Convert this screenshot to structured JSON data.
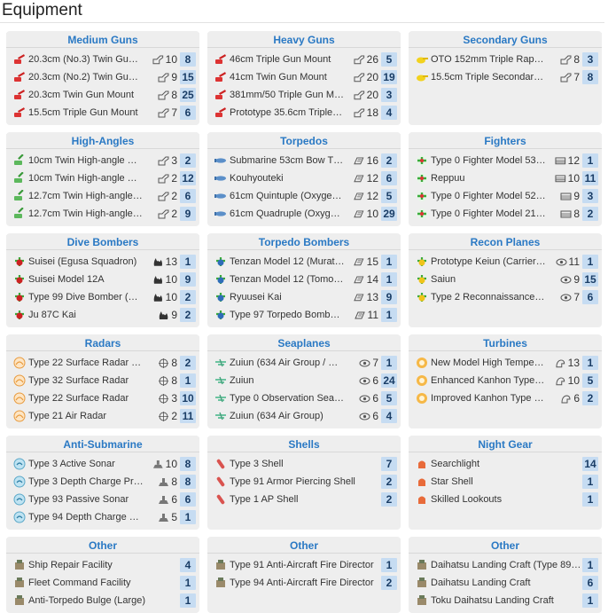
{
  "page_title": "Equipment",
  "panels": [
    {
      "title": "Medium Guns",
      "icon": "red-gun",
      "items": [
        {
          "name": "20.3cm (No.3) Twin Gu…",
          "stat_icon": "firepower",
          "stat": "10",
          "count": "8"
        },
        {
          "name": "20.3cm (No.2) Twin Gu…",
          "stat_icon": "firepower",
          "stat": "9",
          "count": "15"
        },
        {
          "name": "20.3cm Twin Gun Mount",
          "stat_icon": "firepower",
          "stat": "8",
          "count": "25"
        },
        {
          "name": "15.5cm Triple Gun Mount",
          "stat_icon": "firepower",
          "stat": "7",
          "count": "6"
        }
      ]
    },
    {
      "title": "Heavy Guns",
      "icon": "red-gun",
      "items": [
        {
          "name": "46cm Triple Gun Mount",
          "stat_icon": "firepower",
          "stat": "26",
          "count": "5"
        },
        {
          "name": "41cm Twin Gun Mount",
          "stat_icon": "firepower",
          "stat": "20",
          "count": "19"
        },
        {
          "name": "381mm/50 Triple Gun M…",
          "stat_icon": "firepower",
          "stat": "20",
          "count": "3"
        },
        {
          "name": "Prototype 35.6cm Triple…",
          "stat_icon": "firepower",
          "stat": "18",
          "count": "4"
        }
      ]
    },
    {
      "title": "Secondary Guns",
      "icon": "yellow-gun",
      "items": [
        {
          "name": "OTO 152mm Triple Rap…",
          "stat_icon": "firepower",
          "stat": "8",
          "count": "3"
        },
        {
          "name": "15.5cm Triple Secondar…",
          "stat_icon": "firepower",
          "stat": "7",
          "count": "8"
        }
      ]
    },
    {
      "title": "High-Angles",
      "icon": "green-gun",
      "items": [
        {
          "name": "10cm Twin High-angle …",
          "stat_icon": "firepower",
          "stat": "3",
          "count": "2"
        },
        {
          "name": "10cm Twin High-angle …",
          "stat_icon": "firepower",
          "stat": "2",
          "count": "12"
        },
        {
          "name": "12.7cm Twin High-angle…",
          "stat_icon": "firepower",
          "stat": "2",
          "count": "6"
        },
        {
          "name": "12.7cm Twin High-angle…",
          "stat_icon": "firepower",
          "stat": "2",
          "count": "9"
        }
      ]
    },
    {
      "title": "Torpedos",
      "icon": "blue-torpedo",
      "items": [
        {
          "name": "Submarine 53cm Bow T…",
          "stat_icon": "torpedo",
          "stat": "16",
          "count": "2"
        },
        {
          "name": "Kouhyouteki",
          "stat_icon": "torpedo",
          "stat": "12",
          "count": "6"
        },
        {
          "name": "61cm Quintuple (Oxyge…",
          "stat_icon": "torpedo",
          "stat": "12",
          "count": "5"
        },
        {
          "name": "61cm Quadruple (Oxyg…",
          "stat_icon": "torpedo",
          "stat": "10",
          "count": "29"
        }
      ]
    },
    {
      "title": "Fighters",
      "icon": "green-plane",
      "items": [
        {
          "name": "Type 0 Fighter Model 53…",
          "stat_icon": "antiair",
          "stat": "12",
          "count": "1"
        },
        {
          "name": "Reppuu",
          "stat_icon": "antiair",
          "stat": "10",
          "count": "11"
        },
        {
          "name": "Type 0 Fighter Model 52…",
          "stat_icon": "antiair",
          "stat": "9",
          "count": "3"
        },
        {
          "name": "Type 0 Fighter Model 21…",
          "stat_icon": "antiair",
          "stat": "8",
          "count": "2"
        }
      ]
    },
    {
      "title": "Dive Bombers",
      "icon": "red-plane",
      "items": [
        {
          "name": "Suisei (Egusa Squadron)",
          "stat_icon": "bomb",
          "stat": "13",
          "count": "1"
        },
        {
          "name": "Suisei Model 12A",
          "stat_icon": "bomb",
          "stat": "10",
          "count": "9"
        },
        {
          "name": "Type 99 Dive Bomber (…",
          "stat_icon": "bomb",
          "stat": "10",
          "count": "2"
        },
        {
          "name": "Ju 87C Kai",
          "stat_icon": "bomb",
          "stat": "9",
          "count": "2"
        }
      ]
    },
    {
      "title": "Torpedo Bombers",
      "icon": "blue-plane",
      "items": [
        {
          "name": "Tenzan Model 12 (Murat…",
          "stat_icon": "torpedo",
          "stat": "15",
          "count": "1"
        },
        {
          "name": "Tenzan Model 12 (Tomo…",
          "stat_icon": "torpedo",
          "stat": "14",
          "count": "1"
        },
        {
          "name": "Ryuusei Kai",
          "stat_icon": "torpedo",
          "stat": "13",
          "count": "9"
        },
        {
          "name": "Type 97 Torpedo Bomb…",
          "stat_icon": "torpedo",
          "stat": "11",
          "count": "1"
        }
      ]
    },
    {
      "title": "Recon Planes",
      "icon": "yellow-plane",
      "items": [
        {
          "name": "Prototype Keiun (Carrier…",
          "stat_icon": "los",
          "stat": "11",
          "count": "1"
        },
        {
          "name": "Saiun",
          "stat_icon": "los",
          "stat": "9",
          "count": "15"
        },
        {
          "name": "Type 2 Reconnaissance…",
          "stat_icon": "los",
          "stat": "7",
          "count": "6"
        }
      ]
    },
    {
      "title": "Radars",
      "icon": "orange-radar",
      "items": [
        {
          "name": "Type 22 Surface Radar …",
          "stat_icon": "accuracy",
          "stat": "8",
          "count": "2"
        },
        {
          "name": "Type 32 Surface Radar",
          "stat_icon": "accuracy",
          "stat": "8",
          "count": "1"
        },
        {
          "name": "Type 22 Surface Radar",
          "stat_icon": "accuracy",
          "stat": "3",
          "count": "10"
        },
        {
          "name": "Type 21 Air Radar",
          "stat_icon": "accuracy",
          "stat": "2",
          "count": "11"
        }
      ]
    },
    {
      "title": "Seaplanes",
      "icon": "green-seaplane",
      "items": [
        {
          "name": "Zuiun (634 Air Group / …",
          "stat_icon": "los",
          "stat": "7",
          "count": "1"
        },
        {
          "name": "Zuiun",
          "stat_icon": "los",
          "stat": "6",
          "count": "24"
        },
        {
          "name": "Type 0 Observation Sea…",
          "stat_icon": "los",
          "stat": "6",
          "count": "5"
        },
        {
          "name": "Zuiun (634 Air Group)",
          "stat_icon": "los",
          "stat": "6",
          "count": "4"
        }
      ]
    },
    {
      "title": "Turbines",
      "icon": "orange-turbine",
      "items": [
        {
          "name": "New Model High Tempe…",
          "stat_icon": "evasion",
          "stat": "13",
          "count": "1"
        },
        {
          "name": "Enhanced Kanhon Type…",
          "stat_icon": "evasion",
          "stat": "10",
          "count": "5"
        },
        {
          "name": "Improved Kanhon Type …",
          "stat_icon": "evasion",
          "stat": "6",
          "count": "2"
        }
      ]
    },
    {
      "title": "Anti-Submarine",
      "icon": "blue-sonar",
      "items": [
        {
          "name": "Type 3 Active Sonar",
          "stat_icon": "asw",
          "stat": "10",
          "count": "8"
        },
        {
          "name": "Type 3 Depth Charge Pr…",
          "stat_icon": "asw",
          "stat": "8",
          "count": "8"
        },
        {
          "name": "Type 93 Passive Sonar",
          "stat_icon": "asw",
          "stat": "6",
          "count": "6"
        },
        {
          "name": "Type 94 Depth Charge …",
          "stat_icon": "asw",
          "stat": "5",
          "count": "1"
        }
      ]
    },
    {
      "title": "Shells",
      "icon": "shell",
      "items": [
        {
          "name": "Type 3 Shell",
          "stat_icon": "",
          "stat": "",
          "count": "7"
        },
        {
          "name": "Type 91 Armor Piercing Shell",
          "stat_icon": "",
          "stat": "",
          "count": "2"
        },
        {
          "name": "Type 1 AP Shell",
          "stat_icon": "",
          "stat": "",
          "count": "2"
        }
      ]
    },
    {
      "title": "Night Gear",
      "icon": "night",
      "items": [
        {
          "name": "Searchlight",
          "stat_icon": "",
          "stat": "",
          "count": "14"
        },
        {
          "name": "Star Shell",
          "stat_icon": "",
          "stat": "",
          "count": "1"
        },
        {
          "name": "Skilled Lookouts",
          "stat_icon": "",
          "stat": "",
          "count": "1"
        }
      ]
    },
    {
      "title": "Other",
      "icon": "other",
      "items": [
        {
          "name": "Ship Repair Facility",
          "stat_icon": "",
          "stat": "",
          "count": "4"
        },
        {
          "name": "Fleet Command Facility",
          "stat_icon": "",
          "stat": "",
          "count": "1"
        },
        {
          "name": "Anti-Torpedo Bulge (Large)",
          "stat_icon": "",
          "stat": "",
          "count": "1"
        }
      ]
    },
    {
      "title": "Other",
      "icon": "other",
      "items": [
        {
          "name": "Type 91 Anti-Aircraft Fire Director",
          "stat_icon": "",
          "stat": "",
          "count": "1"
        },
        {
          "name": "Type 94 Anti-Aircraft Fire Director",
          "stat_icon": "",
          "stat": "",
          "count": "2"
        }
      ]
    },
    {
      "title": "Other",
      "icon": "other",
      "items": [
        {
          "name": "Daihatsu Landing Craft (Type 89…",
          "stat_icon": "",
          "stat": "",
          "count": "1"
        },
        {
          "name": "Daihatsu Landing Craft",
          "stat_icon": "",
          "stat": "",
          "count": "6"
        },
        {
          "name": "Toku Daihatsu Landing Craft",
          "stat_icon": "",
          "stat": "",
          "count": "1"
        }
      ]
    }
  ],
  "colors": {
    "panel_bg": "#eeeeee",
    "title_blue": "#2a79c4",
    "count_bg": "#c6dcf2"
  }
}
